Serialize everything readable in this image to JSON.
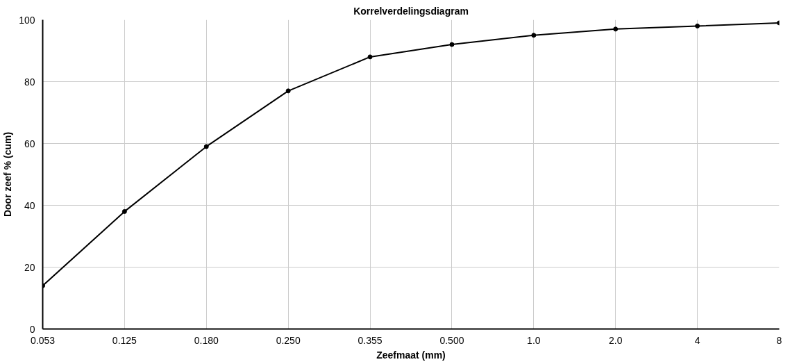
{
  "chart_data": {
    "type": "line",
    "title": "Korrelverdelingsdiagram",
    "xlabel": "Zeefmaat (mm)",
    "ylabel": "Door zeef % (cum)",
    "categories": [
      "0.053",
      "0.125",
      "0.180",
      "0.250",
      "0.355",
      "0.500",
      "1.0",
      "2.0",
      "4",
      "8"
    ],
    "series": [
      {
        "color": "#000000",
        "values": [
          14,
          38,
          59,
          77,
          88,
          92,
          95,
          97,
          98,
          99
        ]
      }
    ],
    "ylim": [
      0,
      100
    ],
    "yticks": [
      0,
      20,
      40,
      60,
      80,
      100
    ],
    "grid": true,
    "marker": "circle",
    "line_style": "solid"
  }
}
